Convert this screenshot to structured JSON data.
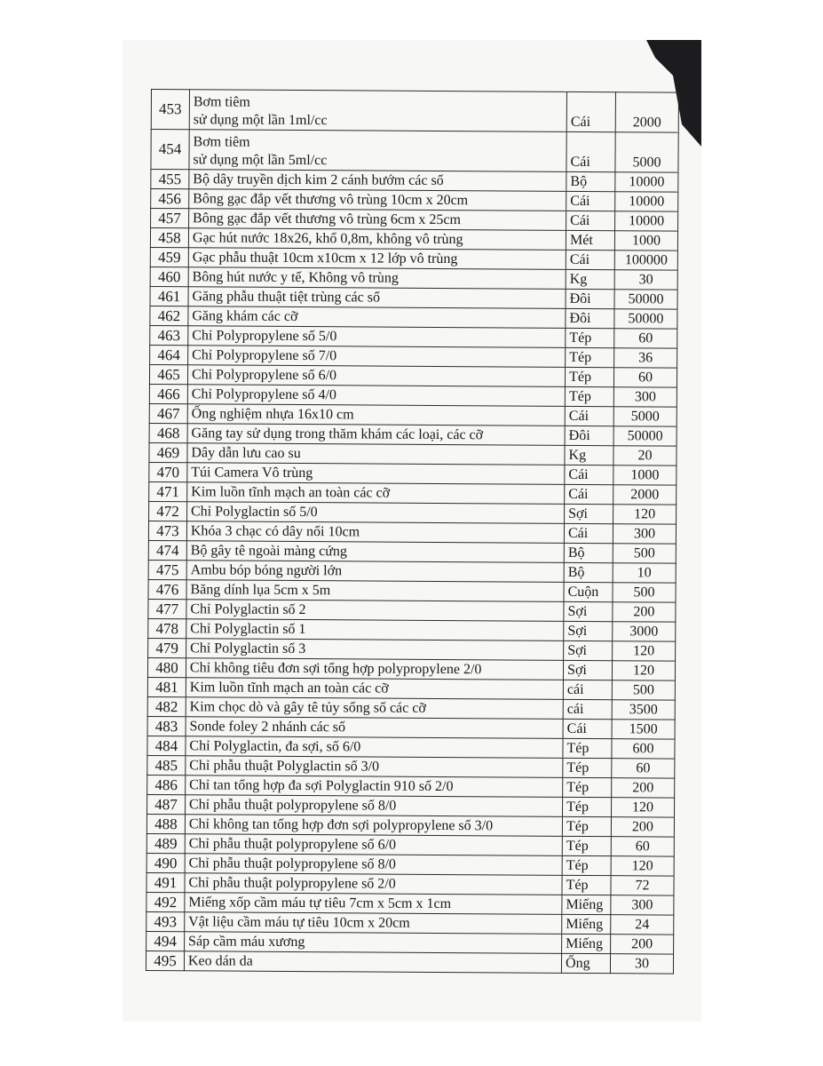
{
  "rows": [
    {
      "no": "453",
      "name_line1": "Bơm tiêm",
      "name": "sử dụng một lần 1ml/cc",
      "unit": "Cái",
      "qty": "2000"
    },
    {
      "no": "454",
      "name_line1": "Bơm tiêm",
      "name": "sử dụng một lần 5ml/cc",
      "unit": "Cái",
      "qty": "5000"
    },
    {
      "no": "455",
      "name": "Bộ dây truyền dịch kim 2 cánh bướm các số",
      "unit": "Bộ",
      "qty": "10000"
    },
    {
      "no": "456",
      "name": "Bông gạc đắp vết thương vô trùng  10cm x 20cm",
      "unit": "Cái",
      "qty": "10000"
    },
    {
      "no": "457",
      "name": "Bông gạc đắp vết thương vô trùng 6cm x 25cm",
      "unit": "Cái",
      "qty": "10000"
    },
    {
      "no": "458",
      "name": "Gạc hút nước 18x26, khổ 0,8m, không vô trùng",
      "unit": "Mét",
      "qty": "1000"
    },
    {
      "no": "459",
      "name": "Gạc phẫu thuật 10cm x10cm x 12 lớp vô trùng",
      "unit": "Cái",
      "qty": "100000"
    },
    {
      "no": "460",
      "name": "Bông hút nước y tế, Không vô trùng",
      "unit": "Kg",
      "qty": "30"
    },
    {
      "no": "461",
      "name": "Găng phẫu thuật tiệt trùng các số",
      "unit": "Đôi",
      "qty": "50000"
    },
    {
      "no": "462",
      "name": "Găng khám các cỡ",
      "unit": "Đôi",
      "qty": "50000"
    },
    {
      "no": "463",
      "name": "Chỉ Polypropylene số 5/0",
      "unit": "Tép",
      "qty": "60"
    },
    {
      "no": "464",
      "name": "Chỉ Polypropylene số 7/0",
      "unit": "Tép",
      "qty": "36"
    },
    {
      "no": "465",
      "name": "Chỉ Polypropylene số 6/0",
      "unit": "Tép",
      "qty": "60"
    },
    {
      "no": "466",
      "name": "Chỉ Polypropylene số 4/0",
      "unit": "Tép",
      "qty": "300"
    },
    {
      "no": "467",
      "name": "Ống nghiệm nhựa 16x10 cm",
      "unit": "Cái",
      "qty": "5000"
    },
    {
      "no": "468",
      "name": "Găng tay sử dụng trong thăm khám các loại, các cỡ",
      "unit": "Đôi",
      "qty": "50000"
    },
    {
      "no": "469",
      "name": "Dây dẫn lưu cao su",
      "unit": "Kg",
      "qty": "20"
    },
    {
      "no": "470",
      "name": "Túi Camera Vô trùng",
      "unit": "Cái",
      "qty": "1000"
    },
    {
      "no": "471",
      "name": "Kim luồn tĩnh mạch an toàn các cỡ",
      "unit": "Cái",
      "qty": "2000"
    },
    {
      "no": "472",
      "name": "Chỉ Polyglactin số 5/0",
      "unit": "Sợi",
      "qty": "120"
    },
    {
      "no": "473",
      "name": "Khóa 3 chạc có dây nối 10cm",
      "unit": "Cái",
      "qty": "300"
    },
    {
      "no": "474",
      "name": "Bộ gây tê ngoài màng cứng",
      "unit": "Bộ",
      "qty": "500"
    },
    {
      "no": "475",
      "name": "Ambu bóp bóng người lớn",
      "unit": "Bộ",
      "qty": "10"
    },
    {
      "no": "476",
      "name": "Băng dính lụa 5cm x 5m",
      "unit": "Cuộn",
      "qty": "500"
    },
    {
      "no": "477",
      "name": "Chỉ Polyglactin số 2",
      "unit": "Sợi",
      "qty": "200"
    },
    {
      "no": "478",
      "name": "Chỉ Polyglactin số 1",
      "unit": "Sợi",
      "qty": "3000"
    },
    {
      "no": "479",
      "name": "Chỉ Polyglactin số 3",
      "unit": "Sợi",
      "qty": "120"
    },
    {
      "no": "480",
      "name": "Chỉ không tiêu đơn sợi tổng hợp polypropylene 2/0",
      "unit": "Sợi",
      "qty": "120"
    },
    {
      "no": "481",
      "name": "Kim luồn tĩnh mạch an toàn các cỡ",
      "unit": "cái",
      "qty": "500"
    },
    {
      "no": "482",
      "name": "Kim chọc dò và gây tê tủy sống số các cỡ",
      "unit": "cái",
      "qty": "3500"
    },
    {
      "no": "483",
      "name": "Sonde foley 2 nhánh các số",
      "unit": "Cái",
      "qty": "1500"
    },
    {
      "no": "484",
      "name": "Chỉ Polyglactin, đa sợi, số 6/0",
      "unit": "Tép",
      "qty": "600"
    },
    {
      "no": "485",
      "name": "Chỉ phẫu thuật Polyglactin số 3/0",
      "unit": "Tép",
      "qty": "60"
    },
    {
      "no": "486",
      "name": "Chỉ tan tổng hợp đa sợi Polyglactin 910 số 2/0",
      "unit": "Tép",
      "qty": "200"
    },
    {
      "no": "487",
      "name": "Chỉ phẫu thuật polypropylene số 8/0",
      "unit": "Tép",
      "qty": "120"
    },
    {
      "no": "488",
      "name": "Chỉ không tan tổng hợp đơn sợi polypropylene số 3/0",
      "unit": "Tép",
      "qty": "200"
    },
    {
      "no": "489",
      "name": "Chỉ phẫu thuật polypropylene số 6/0",
      "unit": "Tép",
      "qty": "60"
    },
    {
      "no": "490",
      "name": "Chỉ phẫu thuật polypropylene số 8/0",
      "unit": "Tép",
      "qty": "120"
    },
    {
      "no": "491",
      "name": "Chỉ phẫu thuật polypropylene số 2/0",
      "unit": "Tép",
      "qty": "72"
    },
    {
      "no": "492",
      "name": "Miếng xốp cầm máu tự tiêu 7cm x 5cm x 1cm",
      "unit": "Miếng",
      "qty": "300"
    },
    {
      "no": "493",
      "name": "Vật liệu cầm máu tự tiêu 10cm x 20cm",
      "unit": "Miếng",
      "qty": "24"
    },
    {
      "no": "494",
      "name": "Sáp cầm máu xương",
      "unit": "Miếng",
      "qty": "200"
    },
    {
      "no": "495",
      "name": "Keo dán da",
      "unit": "Ống",
      "qty": "30"
    }
  ]
}
